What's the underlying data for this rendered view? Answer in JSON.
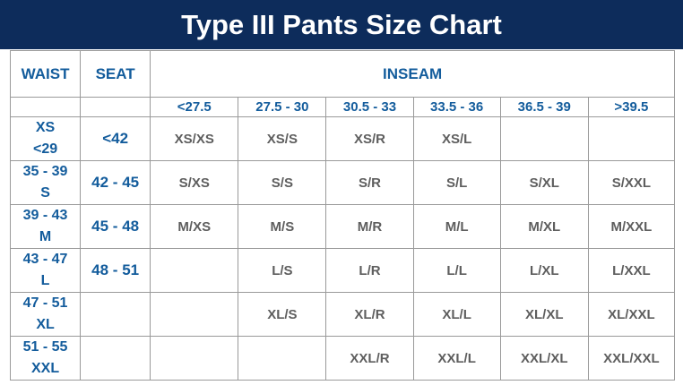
{
  "title": "Type III Pants Size Chart",
  "headers": {
    "waist": "WAIST",
    "seat": "SEAT",
    "inseam": "INSEAM"
  },
  "inseam_ranges": [
    "<27.5",
    "27.5 - 30",
    "30.5 - 33",
    "33.5 - 36",
    "36.5 - 39",
    ">39.5"
  ],
  "rows": [
    {
      "waist_range": "XS",
      "waist_size": "<29",
      "seat": "<42",
      "cells": [
        "XS/XS",
        "XS/S",
        "XS/R",
        "XS/L",
        "",
        ""
      ]
    },
    {
      "waist_range": "35 - 39",
      "waist_size": "S",
      "seat": "42 - 45",
      "cells": [
        "S/XS",
        "S/S",
        "S/R",
        "S/L",
        "S/XL",
        "S/XXL"
      ]
    },
    {
      "waist_range": "39 - 43",
      "waist_size": "M",
      "seat": "45 - 48",
      "cells": [
        "M/XS",
        "M/S",
        "M/R",
        "M/L",
        "M/XL",
        "M/XXL"
      ]
    },
    {
      "waist_range": "43 - 47",
      "waist_size": "L",
      "seat": "48 - 51",
      "cells": [
        "",
        "L/S",
        "L/R",
        "L/L",
        "L/XL",
        "L/XXL"
      ]
    },
    {
      "waist_range": "47 - 51",
      "waist_size": "XL",
      "seat": "",
      "cells": [
        "",
        "XL/S",
        "XL/R",
        "XL/L",
        "XL/XL",
        "XL/XXL"
      ]
    },
    {
      "waist_range": "51 - 55",
      "waist_size": "XXL",
      "seat": "",
      "cells": [
        "",
        "",
        "XXL/R",
        "XXL/L",
        "XXL/XL",
        "XXL/XXL"
      ]
    }
  ],
  "colors": {
    "banner": "#0d2c5b",
    "header_text": "#135c9c",
    "cell_text": "#5e5e5e",
    "grid": "#9a9a9a"
  }
}
